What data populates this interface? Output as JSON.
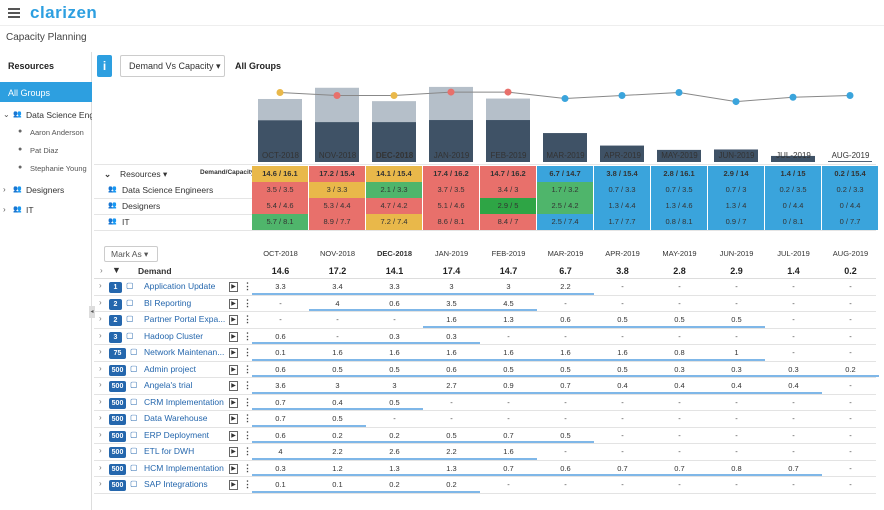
{
  "app": {
    "logo": "clarizen",
    "page_title": "Capacity Planning"
  },
  "left_panel": {
    "heading": "Resources",
    "selected": "All Groups",
    "items": [
      {
        "label": "Data Science Eng",
        "level": 0,
        "expanded": true
      },
      {
        "label": "Aaron Anderson",
        "level": 1
      },
      {
        "label": "Pat Diaz",
        "level": 1
      },
      {
        "label": "Stephanie Young",
        "level": 1
      },
      {
        "label": "Designers",
        "level": 0,
        "expanded": false
      },
      {
        "label": "IT",
        "level": 0,
        "expanded": false
      }
    ]
  },
  "toolbar": {
    "info_label": "i",
    "view_dropdown": "Demand Vs Capacity ▾",
    "group_label": "All Groups"
  },
  "months": [
    "OCT-2018",
    "NOV-2018",
    "DEC-2018",
    "JAN-2019",
    "FEB-2019",
    "MAR-2019",
    "APR-2019",
    "MAY-2019",
    "JUN-2019",
    "JUL-2019",
    "AUG-2019"
  ],
  "current_month_index": 2,
  "chart_data": {
    "type": "bar",
    "categories": [
      "OCT-2018",
      "NOV-2018",
      "DEC-2018",
      "JAN-2019",
      "FEB-2019",
      "MAR-2019",
      "APR-2019",
      "MAY-2019",
      "JUN-2019",
      "JUL-2019",
      "AUG-2019"
    ],
    "series": [
      {
        "values": [
          14.6,
          17.2,
          14.1,
          17.4,
          14.7,
          6.7,
          3.8,
          2.8,
          2.9,
          1.4,
          0.2
        ]
      },
      {
        "values": [
          16.1,
          15.4,
          15.4,
          16.2,
          16.2,
          14.7,
          15.4,
          16.1,
          14,
          15,
          15.4
        ]
      }
    ]
  },
  "capacity": {
    "resources_label": "Resources ▾",
    "column_label": "Demand/Capacity",
    "rows": [
      {
        "label": "Data Science Engineers",
        "cells": [
          "3.5 / 3.5",
          "3 / 3.3",
          "2.1 / 3.3",
          "3.7 / 3.5",
          "3.4 / 3",
          "1.7 / 3.2",
          "0.7 / 3.3",
          "0.7 / 3.5",
          "0.7 / 3",
          "0.2 / 3.5",
          "0.2 / 3.3"
        ],
        "colors": [
          "r",
          "y",
          "g",
          "r",
          "r",
          "g",
          "b",
          "b",
          "b",
          "b",
          "b"
        ]
      },
      {
        "label": "Designers",
        "cells": [
          "5.4 / 4.6",
          "5.3 / 4.4",
          "4.7 / 4.2",
          "5.1 / 4.6",
          "2.9 / 5",
          "2.5 / 4.2",
          "1.3 / 4.4",
          "1.3 / 4.6",
          "1.3 / 4",
          "0 / 4.4",
          "0 / 4.4"
        ],
        "colors": [
          "r",
          "r",
          "r",
          "r",
          "gr",
          "g",
          "b",
          "b",
          "b",
          "b",
          "b"
        ]
      },
      {
        "label": "IT",
        "cells": [
          "5.7 / 8.1",
          "8.9 / 7.7",
          "7.2 / 7.4",
          "8.6 / 8.1",
          "8.4 / 7",
          "2.5 / 7.4",
          "1.7 / 7.7",
          "0.8 / 8.1",
          "0.9 / 7",
          "0 / 8.1",
          "0 / 7.7"
        ],
        "colors": [
          "g",
          "r",
          "y",
          "r",
          "r",
          "b",
          "b",
          "b",
          "b",
          "b",
          "b"
        ]
      }
    ],
    "header_row": {
      "cells": [
        "14.6 / 16.1",
        "17.2 / 15.4",
        "14.1 / 15.4",
        "17.4 / 16.2",
        "14.7 / 16.2",
        "6.7 / 14.7",
        "3.8 / 15.4",
        "2.8 / 16.1",
        "2.9 / 14",
        "1.4 / 15",
        "0.2 / 15.4"
      ],
      "colors": [
        "y",
        "r",
        "y",
        "r",
        "r",
        "b",
        "b",
        "b",
        "b",
        "b",
        "b"
      ]
    }
  },
  "demand": {
    "mark_as": "Mark As ▾",
    "label": "Demand",
    "totals": [
      "14.6",
      "17.2",
      "14.1",
      "17.4",
      "14.7",
      "6.7",
      "3.8",
      "2.8",
      "2.9",
      "1.4",
      "0.2"
    ],
    "projects": [
      {
        "badge": "1",
        "name": "Application Update",
        "values": [
          "3.3",
          "3.4",
          "3.3",
          "3",
          "3",
          "2.2",
          "-",
          "-",
          "-",
          "-",
          "-"
        ]
      },
      {
        "badge": "2",
        "name": "BI Reporting",
        "values": [
          "-",
          "4",
          "0.6",
          "3.5",
          "4.5",
          "-",
          "-",
          "-",
          "-",
          "-",
          "-"
        ]
      },
      {
        "badge": "2",
        "name": "Partner Portal Expa...",
        "values": [
          "-",
          "-",
          "-",
          "1.6",
          "1.3",
          "0.6",
          "0.5",
          "0.5",
          "0.5",
          "-",
          "-"
        ]
      },
      {
        "badge": "3",
        "name": "Hadoop Cluster",
        "values": [
          "0.6",
          "-",
          "0.3",
          "0.3",
          "-",
          "-",
          "-",
          "-",
          "-",
          "-",
          "-"
        ]
      },
      {
        "badge": "75",
        "name": "Network Maintenan...",
        "values": [
          "0.1",
          "1.6",
          "1.6",
          "1.6",
          "1.6",
          "1.6",
          "1.6",
          "0.8",
          "1",
          "-",
          "-"
        ]
      },
      {
        "badge": "500",
        "name": "Admin project",
        "values": [
          "0.6",
          "0.5",
          "0.5",
          "0.6",
          "0.5",
          "0.5",
          "0.5",
          "0.3",
          "0.3",
          "0.3",
          "0.2"
        ]
      },
      {
        "badge": "500",
        "name": "Angela's trial",
        "values": [
          "3.6",
          "3",
          "3",
          "2.7",
          "0.9",
          "0.7",
          "0.4",
          "0.4",
          "0.4",
          "0.4",
          "-"
        ]
      },
      {
        "badge": "500",
        "name": "CRM Implementation",
        "values": [
          "0.7",
          "0.4",
          "0.5",
          "-",
          "-",
          "-",
          "-",
          "-",
          "-",
          "-",
          "-"
        ]
      },
      {
        "badge": "500",
        "name": "Data Warehouse",
        "values": [
          "0.7",
          "0.5",
          "-",
          "-",
          "-",
          "-",
          "-",
          "-",
          "-",
          "-",
          "-"
        ]
      },
      {
        "badge": "500",
        "name": "ERP Deployment",
        "values": [
          "0.6",
          "0.2",
          "0.2",
          "0.5",
          "0.7",
          "0.5",
          "-",
          "-",
          "-",
          "-",
          "-"
        ]
      },
      {
        "badge": "500",
        "name": "ETL for DWH",
        "values": [
          "4",
          "2.2",
          "2.6",
          "2.2",
          "1.6",
          "-",
          "-",
          "-",
          "-",
          "-",
          "-"
        ]
      },
      {
        "badge": "500",
        "name": "HCM Implementation",
        "values": [
          "0.3",
          "1.2",
          "1.3",
          "1.3",
          "0.7",
          "0.6",
          "0.7",
          "0.7",
          "0.8",
          "0.7",
          "-"
        ]
      },
      {
        "badge": "500",
        "name": "SAP Integrations",
        "values": [
          "0.1",
          "0.1",
          "0.2",
          "0.2",
          "-",
          "-",
          "-",
          "-",
          "-",
          "-",
          "-"
        ]
      }
    ]
  }
}
